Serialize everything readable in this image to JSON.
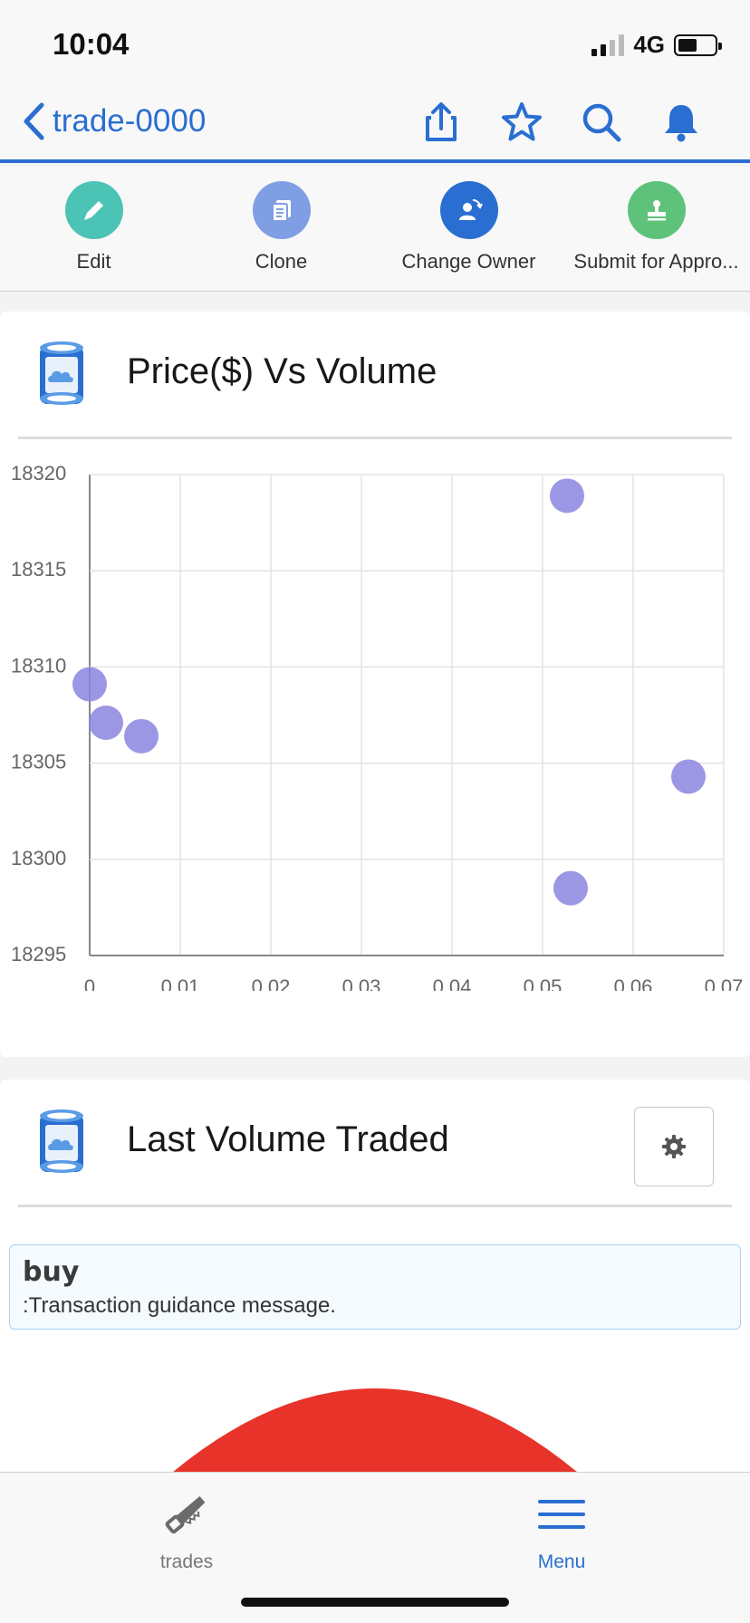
{
  "status_bar": {
    "time": "10:04",
    "network": "4G"
  },
  "nav": {
    "back_label": "trade-0000",
    "icons": [
      "share-icon",
      "star-icon",
      "search-icon",
      "bell-icon"
    ]
  },
  "actions": [
    {
      "label": "Edit",
      "icon": "pencil-icon",
      "color": "#4bc3b5"
    },
    {
      "label": "Clone",
      "icon": "clone-icon",
      "color": "#7f9ee3"
    },
    {
      "label": "Change Owner",
      "icon": "change-owner-icon",
      "color": "#2a6ed1"
    },
    {
      "label": "Submit for Appro...",
      "icon": "stamp-icon",
      "color": "#5fc27a"
    }
  ],
  "chart_card": {
    "title": "Price($) Vs Volume"
  },
  "chart_data": {
    "type": "scatter",
    "title": "",
    "xlabel": "",
    "ylabel": "",
    "xlim": [
      0,
      0.07
    ],
    "ylim": [
      18295,
      18320
    ],
    "x_ticks": [
      "0",
      "0.01",
      "0.02",
      "0.03",
      "0.04",
      "0.05",
      "0.06",
      "0.07"
    ],
    "y_ticks": [
      "18295",
      "18300",
      "18305",
      "18310",
      "18315",
      "18320"
    ],
    "grid": true,
    "point_color": "#8b85e0",
    "points": [
      {
        "x": 0.0,
        "y": 18309.1
      },
      {
        "x": 0.0018,
        "y": 18307.1
      },
      {
        "x": 0.0057,
        "y": 18306.4
      },
      {
        "x": 0.0527,
        "y": 18318.9
      },
      {
        "x": 0.0531,
        "y": 18298.5
      },
      {
        "x": 0.0661,
        "y": 18304.3
      }
    ]
  },
  "volume_card": {
    "title": "Last Volume Traded"
  },
  "message": {
    "title": "buy",
    "body": ":Transaction guidance message."
  },
  "gauge": {
    "color": "#e8332a"
  },
  "tabs": [
    {
      "label": "trades",
      "icon": "saw-icon",
      "active": false
    },
    {
      "label": "Menu",
      "icon": "hamburger-icon",
      "active": true
    }
  ],
  "colors": {
    "accent": "#2a6ed1",
    "gauge": "#e8332a"
  }
}
